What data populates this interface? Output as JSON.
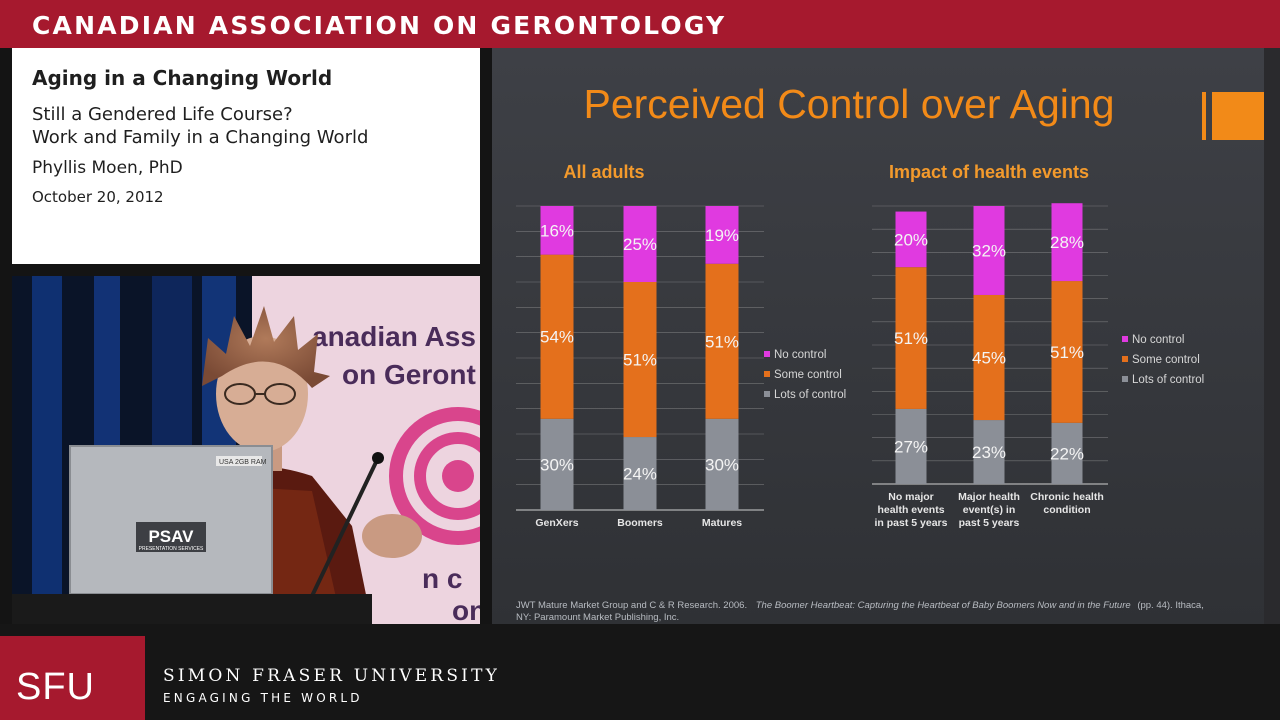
{
  "banner": {
    "title": "CANADIAN ASSOCIATION ON GERONTOLOGY"
  },
  "info": {
    "title": "Aging in a Changing World",
    "lines": [
      "Still a Gendered Life Course?",
      "Work and Family in a Changing World",
      "Phyllis Moen, PhD"
    ],
    "date": "October 20, 2012"
  },
  "video": {
    "backdrop_text": [
      "anadian Ass",
      "on Geront",
      "n c",
      "ont"
    ],
    "laptop_logo": "PSAV",
    "laptop_logo_sub": "PRESENTATION SERVICES",
    "laptop_sticker": "USA 2GB RAM"
  },
  "slide": {
    "title": "Perceived Control over Aging",
    "source_line1_plain": "JWT Mature Market Group and C & R Research. 2006.",
    "source_line1_italic": "The Boomer Heartbeat: Capturing the Heartbeat of Baby Boomers Now and in the Future",
    "source_line1_tail": "(pp. 44). Ithaca,",
    "source_line2": "NY: Paramount Market Publishing, Inc."
  },
  "chart_data": [
    {
      "type": "bar",
      "stacked": true,
      "title": "All adults",
      "categories": [
        "GenXers",
        "Boomers",
        "Matures"
      ],
      "series": [
        {
          "name": "Lots of control",
          "values": [
            30,
            24,
            30
          ]
        },
        {
          "name": "Some control",
          "values": [
            54,
            51,
            51
          ]
        },
        {
          "name": "No control",
          "values": [
            16,
            25,
            19
          ]
        }
      ],
      "ylim": [
        0,
        100
      ],
      "grid": true,
      "legend": "right"
    },
    {
      "type": "bar",
      "stacked": true,
      "title": "Impact of health events",
      "categories": [
        "No major health events in past 5 years",
        "Major health event(s) in past 5 years",
        "Chronic health condition"
      ],
      "category_lines": [
        [
          "No major",
          "health events",
          "in past 5 years"
        ],
        [
          "Major health",
          "event(s) in",
          "past 5 years"
        ],
        [
          "Chronic health",
          "condition"
        ]
      ],
      "series": [
        {
          "name": "Lots of control",
          "values": [
            27,
            23,
            22
          ]
        },
        {
          "name": "Some control",
          "values": [
            51,
            45,
            51
          ]
        },
        {
          "name": "No control",
          "values": [
            20,
            32,
            28
          ]
        }
      ],
      "ylim": [
        0,
        100
      ],
      "grid": true,
      "legend": "right"
    }
  ],
  "colors": {
    "banner": "#a6192e",
    "slide_bg": "#393b40",
    "title": "#f28a18",
    "subtitle": "#f39a2c",
    "no_control": "#e03ae0",
    "some_control": "#e4701c",
    "lots_of_control": "#8b8f97",
    "grid": "#a8a8a8"
  },
  "footer": {
    "logo": "SFU",
    "university": "SIMON FRASER UNIVERSITY",
    "tagline": "ENGAGING THE WORLD"
  }
}
